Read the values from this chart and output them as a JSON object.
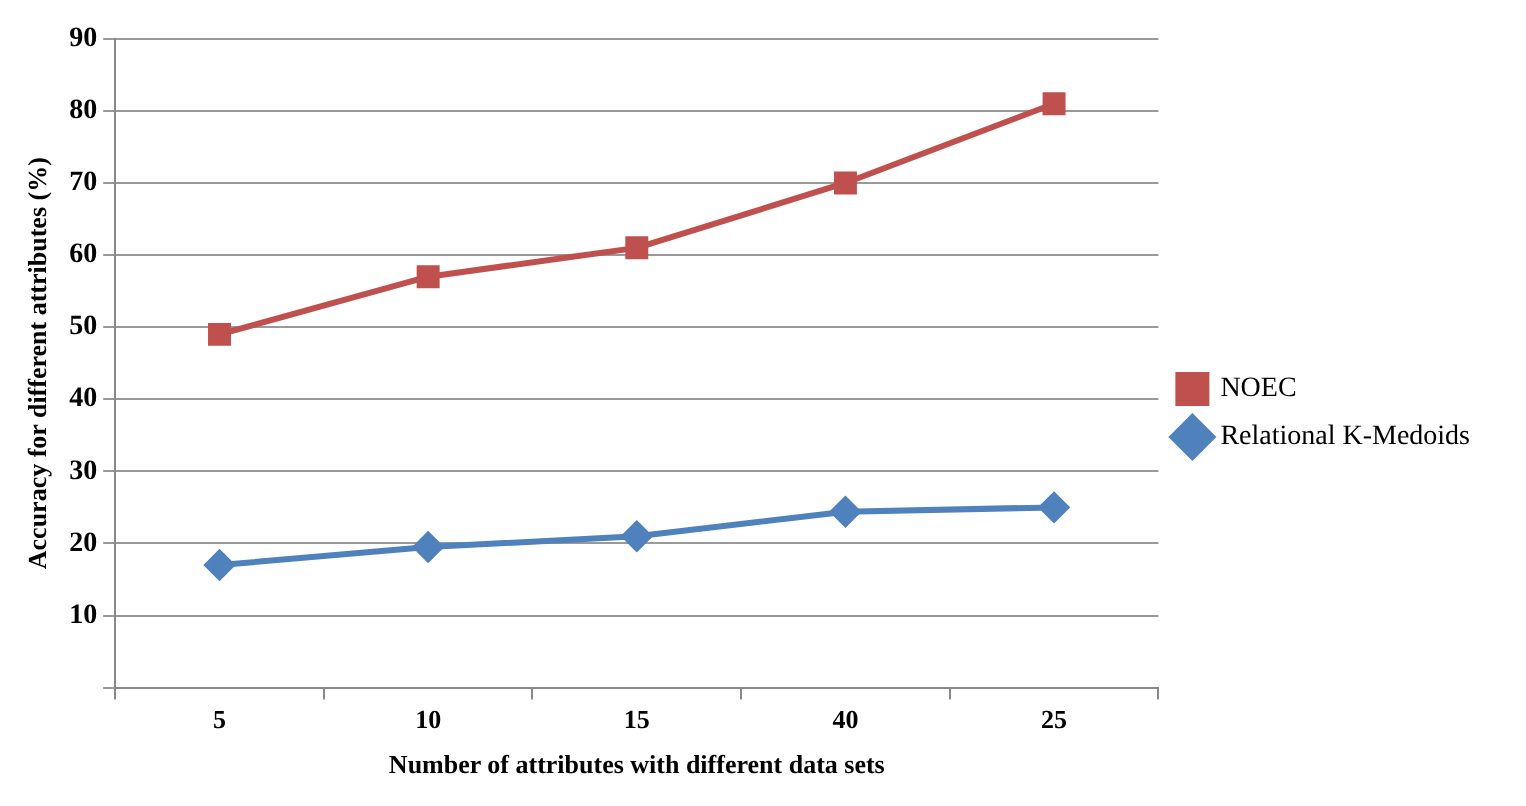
{
  "chart_data": {
    "type": "line",
    "xlabel": "Number of attributes with different data sets",
    "ylabel": "Accuracy for different attributes (%)",
    "categories": [
      "5",
      "10",
      "15",
      "40",
      "25"
    ],
    "series": [
      {
        "name": "NOEC",
        "color": "#c0504d",
        "marker": "square",
        "values": [
          49,
          57,
          61,
          70,
          81
        ]
      },
      {
        "name": "Relational K-Medoids",
        "color": "#4f81bd",
        "marker": "diamond",
        "values": [
          17,
          19.5,
          21,
          24.4,
          25
        ]
      }
    ],
    "ylim": [
      0,
      90
    ],
    "yticks": [
      {
        "value": 0,
        "label": null
      },
      10,
      20,
      30,
      40,
      50,
      60,
      70,
      80,
      90
    ],
    "grid": "y",
    "legend": "right",
    "line_style": "solid"
  }
}
